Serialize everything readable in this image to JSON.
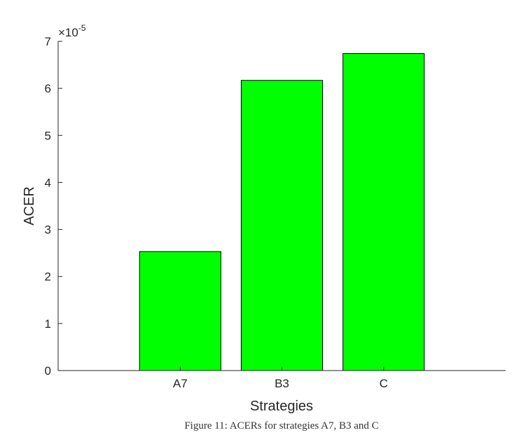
{
  "chart_data": {
    "type": "bar",
    "categories": [
      "A7",
      "B3",
      "C"
    ],
    "values": [
      2.53,
      6.17,
      6.74
    ],
    "color": "#00ff00",
    "ylim": [
      0,
      7
    ],
    "yticks": [
      0,
      1,
      2,
      3,
      4,
      5,
      6,
      7
    ],
    "y_multiplier": {
      "base": "×10",
      "exponent": "-5"
    },
    "xlabel": "Strategies",
    "ylabel": "ACER",
    "caption": "Figure 11: ACERs for strategies A7, B3 and C"
  }
}
